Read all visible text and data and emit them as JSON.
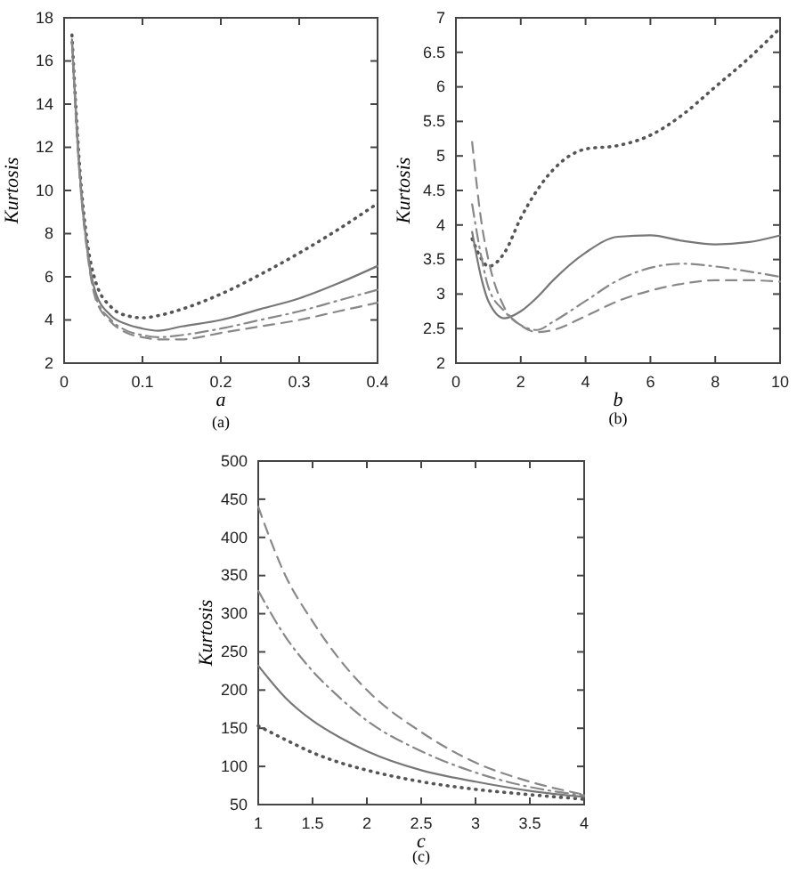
{
  "chart_data": [
    {
      "type": "line",
      "xlabel": "a",
      "ylabel": "Kurtosis",
      "annotations": [
        "(a)"
      ],
      "xlim": [
        0,
        0.4
      ],
      "ylim": [
        2,
        18
      ],
      "xticks": [
        0,
        0.1,
        0.2,
        0.3,
        0.4
      ],
      "yticks": [
        2,
        4,
        6,
        8,
        10,
        12,
        14,
        16,
        18
      ],
      "grid": false,
      "marker": "none",
      "x": [
        0.01,
        0.02,
        0.03,
        0.04,
        0.06,
        0.08,
        0.1,
        0.12,
        0.15,
        0.2,
        0.25,
        0.3,
        0.35,
        0.4
      ],
      "series": [
        {
          "color": "#555555",
          "line_style": "dotted",
          "values": [
            17.2,
            11,
            7.5,
            5.8,
            4.6,
            4.2,
            4.1,
            4.2,
            4.5,
            5.2,
            6.1,
            7.1,
            8.2,
            9.4
          ]
        },
        {
          "color": "#777777",
          "line_style": "solid",
          "values": [
            17,
            10.8,
            7.2,
            5.3,
            4.2,
            3.8,
            3.6,
            3.5,
            3.7,
            4.0,
            4.5,
            5.0,
            5.7,
            6.5
          ]
        },
        {
          "color": "#888888",
          "line_style": "dashdot",
          "values": [
            16.9,
            10.7,
            7.1,
            5.1,
            4.0,
            3.5,
            3.3,
            3.2,
            3.3,
            3.6,
            4.0,
            4.4,
            4.9,
            5.4
          ]
        },
        {
          "color": "#888888",
          "line_style": "dashed",
          "values": [
            16.9,
            10.6,
            7.0,
            5.0,
            3.9,
            3.4,
            3.2,
            3.1,
            3.1,
            3.4,
            3.7,
            4.0,
            4.4,
            4.8
          ]
        }
      ]
    },
    {
      "type": "line",
      "xlabel": "b",
      "ylabel": "Kurtosis",
      "annotations": [
        "(b)"
      ],
      "xlim": [
        0,
        10
      ],
      "ylim": [
        2,
        7
      ],
      "xticks": [
        0,
        2,
        4,
        6,
        8,
        10
      ],
      "yticks": [
        2,
        2.5,
        3,
        3.5,
        4,
        4.5,
        5,
        5.5,
        6,
        6.5,
        7
      ],
      "grid": false,
      "marker": "none",
      "x": [
        0.5,
        0.8,
        1,
        1.5,
        2,
        2.5,
        3,
        4,
        5,
        6,
        7,
        8,
        9,
        10
      ],
      "series": [
        {
          "color": "#555555",
          "line_style": "dotted",
          "values": [
            3.8,
            3.5,
            3.4,
            3.6,
            4.1,
            4.5,
            4.8,
            5.1,
            5.15,
            5.3,
            5.6,
            6.0,
            6.4,
            6.85
          ]
        },
        {
          "color": "#777777",
          "line_style": "solid",
          "values": [
            3.9,
            3.2,
            2.9,
            2.65,
            2.75,
            2.95,
            3.2,
            3.6,
            3.83,
            3.85,
            3.77,
            3.72,
            3.75,
            3.85
          ]
        },
        {
          "color": "#888888",
          "line_style": "dashdot",
          "values": [
            4.3,
            3.5,
            3.1,
            2.75,
            2.55,
            2.48,
            2.6,
            2.9,
            3.2,
            3.38,
            3.44,
            3.4,
            3.33,
            3.25
          ]
        },
        {
          "color": "#888888",
          "line_style": "dashed",
          "values": [
            5.2,
            4.0,
            3.5,
            2.8,
            2.55,
            2.45,
            2.48,
            2.68,
            2.9,
            3.05,
            3.15,
            3.2,
            3.2,
            3.18
          ]
        }
      ]
    },
    {
      "type": "line",
      "xlabel": "c",
      "ylabel": "Kurtosis",
      "annotations": [
        "(c)"
      ],
      "xlim": [
        1,
        4
      ],
      "ylim": [
        50,
        500
      ],
      "xticks": [
        1,
        1.5,
        2,
        2.5,
        3,
        3.5,
        4
      ],
      "yticks": [
        50,
        100,
        150,
        200,
        250,
        300,
        350,
        400,
        450,
        500
      ],
      "grid": false,
      "marker": "none",
      "x": [
        1,
        1.25,
        1.5,
        1.75,
        2,
        2.5,
        3,
        3.5,
        4
      ],
      "series": [
        {
          "color": "#555555",
          "line_style": "dotted",
          "values": [
            153,
            135,
            118,
            105,
            95,
            80,
            70,
            63,
            57
          ]
        },
        {
          "color": "#777777",
          "line_style": "solid",
          "values": [
            232,
            190,
            160,
            138,
            120,
            95,
            80,
            68,
            60
          ]
        },
        {
          "color": "#888888",
          "line_style": "dashdot",
          "values": [
            330,
            270,
            225,
            190,
            160,
            120,
            92,
            73,
            62
          ]
        },
        {
          "color": "#888888",
          "line_style": "dashed",
          "values": [
            440,
            350,
            290,
            240,
            200,
            145,
            105,
            80,
            63
          ]
        }
      ]
    }
  ]
}
